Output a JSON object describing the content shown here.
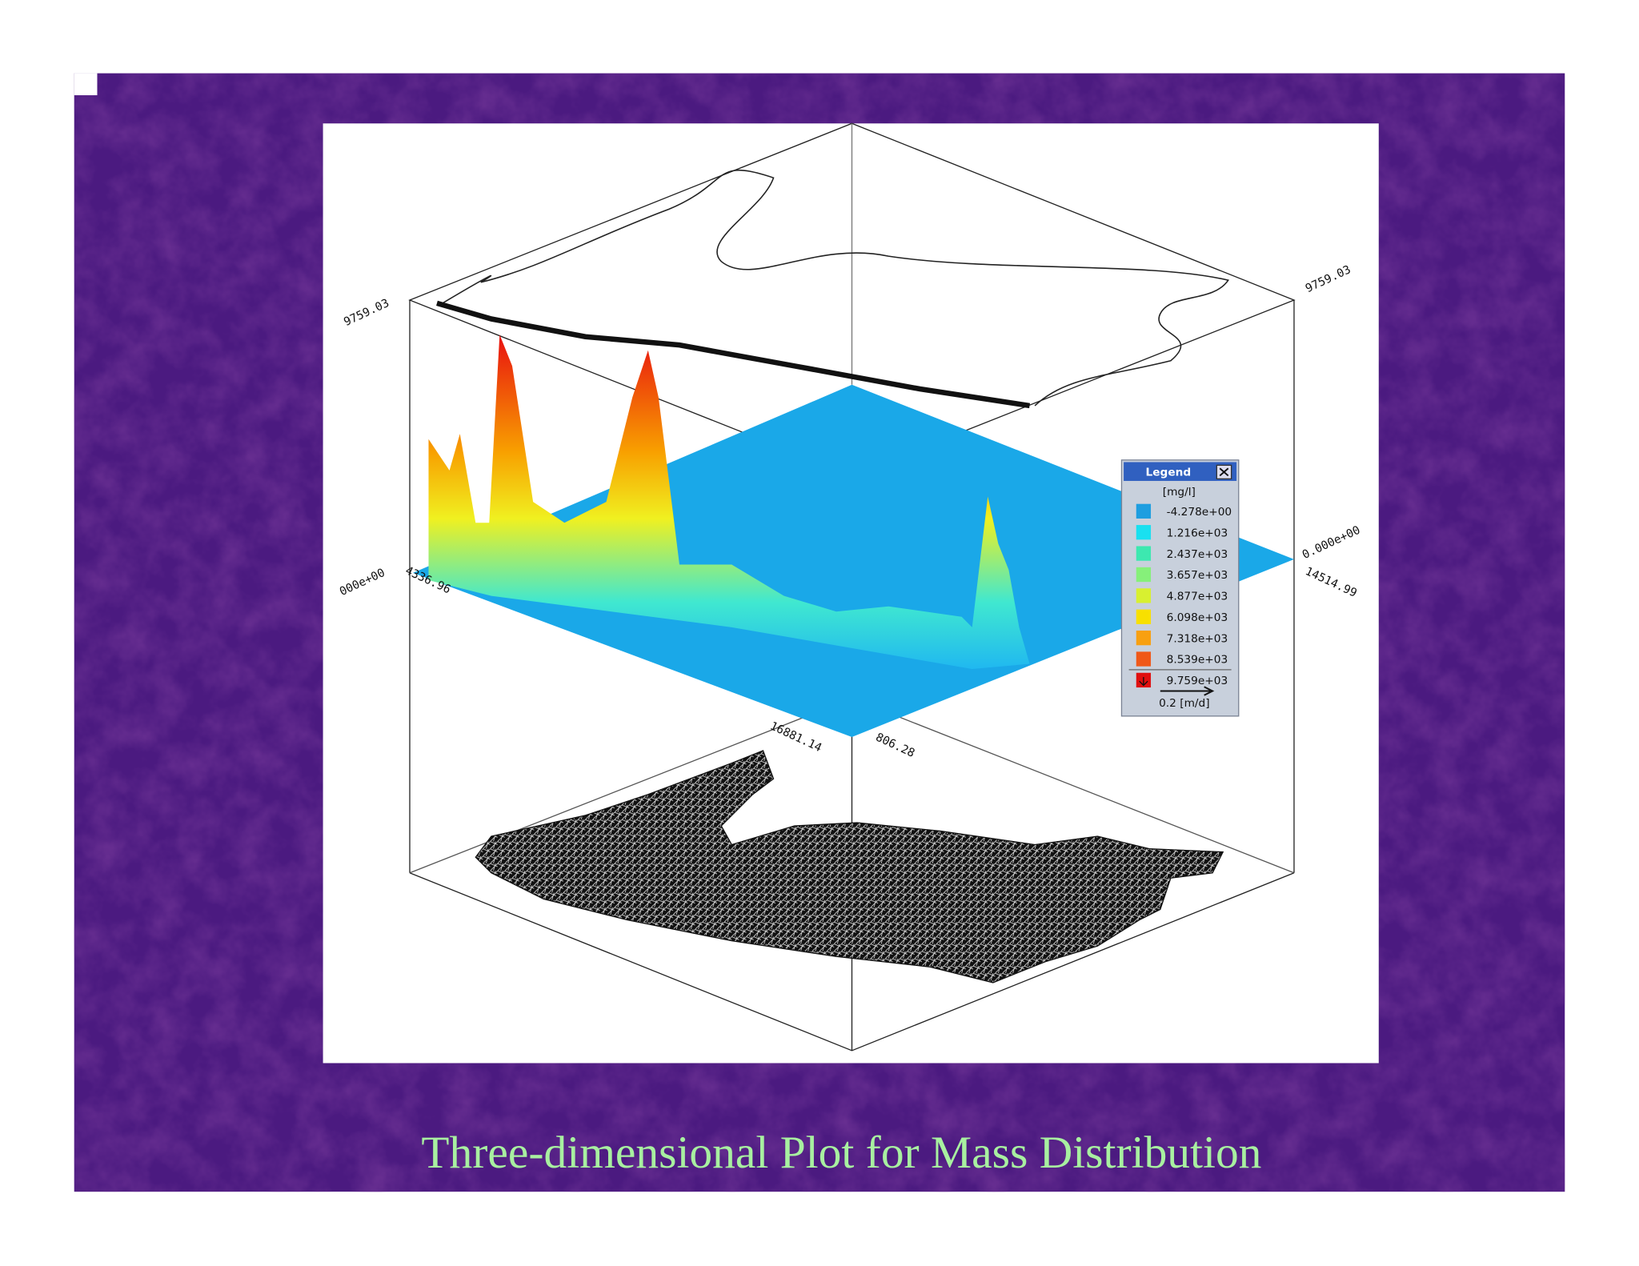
{
  "caption": "Three-dimensional Plot for Mass Distribution",
  "plot": {
    "axis_labels": [
      "9759.03",
      "9759.03",
      "000e+00",
      "0.000e+00",
      "4336.96",
      "14514.99",
      "16881.14",
      "806.28"
    ]
  },
  "legend": {
    "title": "Legend",
    "unit": "[mg/l]",
    "entries": [
      {
        "label": "-4.278e+00",
        "color": "#1e9ee0"
      },
      {
        "label": "1.216e+03",
        "color": "#19e0f0"
      },
      {
        "label": "2.437e+03",
        "color": "#3de8b0"
      },
      {
        "label": "3.657e+03",
        "color": "#86f07a"
      },
      {
        "label": "4.877e+03",
        "color": "#d8f030"
      },
      {
        "label": "6.098e+03",
        "color": "#f8e000"
      },
      {
        "label": "7.318e+03",
        "color": "#f8a010"
      },
      {
        "label": "8.539e+03",
        "color": "#f05818"
      },
      {
        "label": "9.759e+03",
        "color": "#e01010"
      }
    ],
    "vector_label": "0.2 [m/d]"
  }
}
